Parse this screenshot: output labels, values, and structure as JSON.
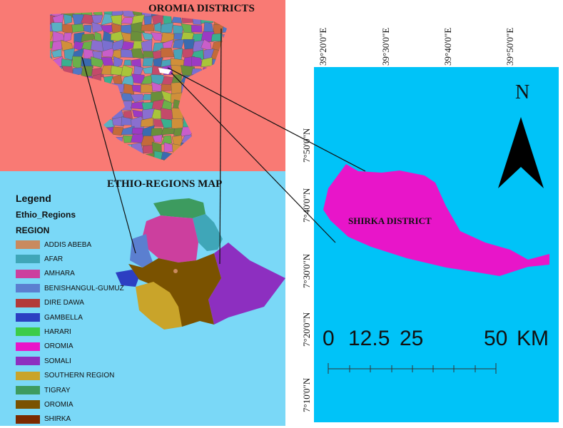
{
  "maps": {
    "oromia_title": "OROMIA DISTRICTS",
    "regions_title": "ETHIO-REGIONS MAP",
    "shirka_label": "SHIRKA DISTRICT",
    "north": "N"
  },
  "legend": {
    "title": "Legend",
    "layer": "Ethio_Regions",
    "field": "REGION",
    "items": [
      {
        "label": "ADDIS ABEBA",
        "color": "#c98a5e"
      },
      {
        "label": "AFAR",
        "color": "#3fa6b8"
      },
      {
        "label": "AMHARA",
        "color": "#cc3f9e"
      },
      {
        "label": "BENISHANGUL-GUMUZ",
        "color": "#5b7fd0"
      },
      {
        "label": "DIRE DAWA",
        "color": "#b23a3a"
      },
      {
        "label": "GAMBELLA",
        "color": "#2c3fc2"
      },
      {
        "label": "HARARI",
        "color": "#3ccc48"
      },
      {
        "label": "OROMIA",
        "color": "#e815c9"
      },
      {
        "label": "SOMALI",
        "color": "#8d2fc0"
      },
      {
        "label": "SOUTHERN REGION",
        "color": "#c9a42a"
      },
      {
        "label": "TIGRAY",
        "color": "#3d9b5f"
      },
      {
        "label": "OROMIA",
        "color": "#7a5200"
      },
      {
        "label": "SHIRKA",
        "color": "#7a2a00"
      }
    ]
  },
  "grid": {
    "longitudes": [
      "39°20'0\"E",
      "39°30'0\"E",
      "39°40'0\"E",
      "39°50'0\"E"
    ],
    "latitudes": [
      "7°50'0\"N",
      "7°40'0\"N",
      "7°30'0\"N",
      "7°20'0\"N",
      "7°10'0\"N"
    ]
  },
  "scale_bar": {
    "labels": [
      "0",
      "12.5",
      "25",
      "50",
      "KM"
    ]
  },
  "colors": {
    "oromia_bg": "#f97a74",
    "regions_bg": "#7ad8f7",
    "shirka_bg": "#00c3f8",
    "shirka_fill": "#e815c9"
  }
}
